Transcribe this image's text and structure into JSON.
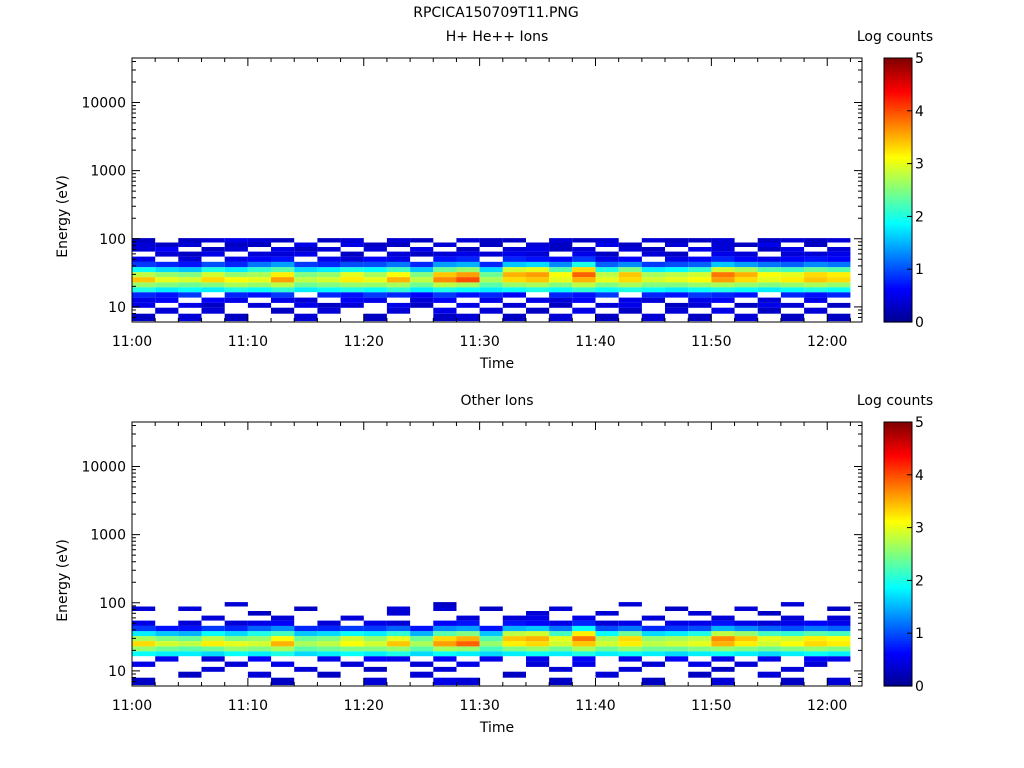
{
  "title": "RPCICA150709T11.PNG",
  "chart_data": [
    {
      "type": "heatmap",
      "title": "H+ He++ Ions",
      "xlabel": "Time",
      "ylabel": "Energy (eV)",
      "y_scale": "log",
      "ylim": [
        6,
        45000
      ],
      "xlim": [
        "11:00",
        "12:03"
      ],
      "x_ticks": [
        "11:00",
        "11:10",
        "11:20",
        "11:30",
        "11:40",
        "11:50",
        "12:00"
      ],
      "y_ticks": [
        "10",
        "100",
        "1000",
        "10000"
      ],
      "colorbar": {
        "label": "Log counts",
        "range": [
          0,
          5
        ],
        "ticks": [
          "0",
          "1",
          "2",
          "3",
          "4",
          "5"
        ]
      },
      "energy_bins": [
        7,
        9,
        10.5,
        12.5,
        15,
        18,
        21,
        25,
        30,
        35,
        42,
        50,
        60,
        70,
        82,
        95
      ],
      "times": [
        "11:01",
        "11:03",
        "11:05",
        "11:07",
        "11:09",
        "11:11",
        "11:13",
        "11:15",
        "11:17",
        "11:19",
        "11:21",
        "11:23",
        "11:25",
        "11:27",
        "11:29",
        "11:31",
        "11:33",
        "11:35",
        "11:37",
        "11:39",
        "11:41",
        "11:43",
        "11:45",
        "11:47",
        "11:49",
        "11:51",
        "11:53",
        "11:55",
        "11:57",
        "11:59",
        "12:01"
      ],
      "values": [
        [
          0.3,
          -1,
          0.5,
          0.5,
          0.8,
          2,
          2.6,
          3.4,
          2.8,
          1.9,
          0.9,
          0.5,
          -1,
          0.4,
          0.4,
          0.3
        ],
        [
          -1,
          0.4,
          -1,
          0.6,
          0.7,
          1.8,
          2.5,
          3,
          2.6,
          1.7,
          0.8,
          -1,
          0.4,
          0.6,
          0.3,
          -1
        ],
        [
          0.4,
          -1,
          0.5,
          -1,
          0.9,
          1.9,
          2.4,
          2.9,
          2.5,
          1.6,
          0.7,
          0.4,
          0.3,
          -1,
          0.4,
          0.3
        ],
        [
          -1,
          0.4,
          0.3,
          0.6,
          -1,
          1.8,
          2.5,
          3.3,
          2.9,
          2,
          1,
          -1,
          0.5,
          0.3,
          -1,
          0.4
        ],
        [
          0.3,
          -1,
          -1,
          0.5,
          0.8,
          2,
          2.7,
          3.1,
          2.6,
          1.8,
          0.8,
          0.5,
          -1,
          0.4,
          0.3,
          0.5
        ],
        [
          -1,
          -1,
          0.4,
          -1,
          0.7,
          1.9,
          2.6,
          3,
          2.7,
          2.1,
          1.2,
          0.6,
          0.4,
          -1,
          0.3,
          0.4
        ],
        [
          -1,
          0.3,
          -1,
          0.5,
          0.9,
          2.1,
          2.8,
          3.6,
          3.2,
          2.3,
          1.4,
          0.7,
          0.4,
          0.5,
          -1,
          0.3
        ],
        [
          0.4,
          -1,
          0.5,
          0.4,
          -1,
          1.8,
          2.4,
          2.8,
          2.5,
          1.7,
          0.9,
          -1,
          0.5,
          0.3,
          0.5,
          -1
        ],
        [
          -1,
          0.4,
          0.3,
          -1,
          0.8,
          1.9,
          2.5,
          2.9,
          2.6,
          1.8,
          0.8,
          0.5,
          -1,
          0.4,
          -1,
          0.3
        ],
        [
          -1,
          -1,
          0.4,
          0.6,
          0.7,
          2,
          2.6,
          3.2,
          3,
          2,
          1,
          0.4,
          0.3,
          -1,
          0.5,
          0.4
        ],
        [
          0.3,
          -1,
          -1,
          0.5,
          0.9,
          1.9,
          2.6,
          3,
          2.7,
          1.9,
          1,
          0.6,
          -1,
          0.4,
          0.3,
          -1
        ],
        [
          -1,
          0.4,
          0.5,
          -1,
          0.8,
          2.1,
          2.7,
          3.5,
          3.1,
          2.2,
          1.2,
          0.5,
          0.4,
          -1,
          0.3,
          0.4
        ],
        [
          -1,
          -1,
          0.3,
          0.4,
          0.6,
          1.8,
          2.4,
          2.8,
          2.5,
          1.6,
          0.8,
          -1,
          0.3,
          0.5,
          -1,
          0.3
        ],
        [
          0.3,
          0.5,
          -1,
          0.6,
          0.9,
          2,
          2.8,
          3.7,
          3.4,
          2.4,
          1.4,
          0.7,
          0.4,
          -1,
          0.4,
          -1
        ],
        [
          0.4,
          -1,
          0.5,
          -1,
          0.7,
          1.9,
          2.7,
          4,
          3.6,
          2.6,
          1.5,
          0.8,
          0.5,
          0.3,
          -1,
          0.4
        ],
        [
          -1,
          0.4,
          -1,
          0.5,
          0.8,
          1.8,
          2.3,
          2.7,
          2.4,
          1.7,
          0.8,
          -1,
          0.4,
          -1,
          0.3,
          0.3
        ],
        [
          0.3,
          -1,
          0.4,
          -1,
          0.6,
          1.9,
          2.6,
          3.3,
          3.5,
          2.9,
          1.6,
          0.8,
          0.5,
          0.4,
          -1,
          0.3
        ],
        [
          -1,
          0.3,
          -1,
          0.5,
          -1,
          2,
          2.7,
          3.4,
          3.6,
          3,
          1.7,
          0.7,
          0.4,
          0.5,
          0.4,
          -1
        ],
        [
          0.4,
          -1,
          0.3,
          0.4,
          0.8,
          1.9,
          2.5,
          3,
          3.1,
          2.3,
          1.3,
          0.6,
          -1,
          0.3,
          0.3,
          0.4
        ],
        [
          -1,
          0.5,
          -1,
          0.6,
          0.7,
          2.1,
          2.8,
          3.5,
          3.9,
          3.3,
          2,
          0.9,
          0.5,
          0.4,
          -1,
          0.3
        ],
        [
          0.3,
          -1,
          0.4,
          -1,
          0.9,
          1.9,
          2.5,
          3,
          2.8,
          2,
          1.1,
          0.5,
          0.3,
          -1,
          0.5,
          0.4
        ],
        [
          -1,
          0.3,
          0.5,
          0.5,
          -1,
          2,
          2.7,
          3.3,
          3.4,
          2.5,
          1.3,
          0.6,
          -1,
          0.4,
          0.3,
          -1
        ],
        [
          0.4,
          -1,
          -1,
          0.4,
          0.8,
          1.9,
          2.5,
          2.9,
          2.7,
          1.8,
          0.9,
          -1,
          0.4,
          0.3,
          -1,
          0.4
        ],
        [
          -1,
          0.4,
          0.3,
          -1,
          0.7,
          1.8,
          2.5,
          3,
          2.8,
          1.9,
          1,
          0.5,
          0.3,
          -1,
          0.4,
          0.3
        ],
        [
          0.3,
          -1,
          0.4,
          0.5,
          0.9,
          1.9,
          2.6,
          3.1,
          2.9,
          2.1,
          1.1,
          0.6,
          -1,
          0.5,
          -1,
          0.3
        ],
        [
          -1,
          0.5,
          -1,
          0.6,
          0.8,
          2,
          2.7,
          3.6,
          3.8,
          2.9,
          1.6,
          0.8,
          0.5,
          0.4,
          0.4,
          0.4
        ],
        [
          0.4,
          -1,
          0.3,
          -1,
          0.7,
          1.9,
          2.6,
          3.3,
          3.5,
          2.7,
          1.4,
          0.6,
          0.4,
          -1,
          0.3,
          -1
        ],
        [
          -1,
          0.3,
          0.5,
          0.4,
          -1,
          1.8,
          2.5,
          3,
          3.1,
          2.3,
          1.2,
          0.5,
          -1,
          0.3,
          0.5,
          0.3
        ],
        [
          0.3,
          -1,
          0.4,
          -1,
          0.8,
          1.9,
          2.6,
          3.2,
          3,
          2.2,
          1.1,
          0.6,
          0.4,
          0.5,
          -1,
          0.4
        ],
        [
          -1,
          0.4,
          -1,
          0.5,
          0.7,
          2,
          2.7,
          3.4,
          3.3,
          2.4,
          1.3,
          0.7,
          0.4,
          -1,
          0.3,
          0.3
        ],
        [
          0.3,
          -1,
          0.3,
          -1,
          0.8,
          1.9,
          2.6,
          3.3,
          3.2,
          2.3,
          1.2,
          0.6,
          0.5,
          0.4,
          -1,
          0.4
        ]
      ]
    },
    {
      "type": "heatmap",
      "title": "Other Ions",
      "xlabel": "Time",
      "ylabel": "Energy (eV)",
      "y_scale": "log",
      "ylim": [
        6,
        45000
      ],
      "xlim": [
        "11:00",
        "12:03"
      ],
      "x_ticks": [
        "11:00",
        "11:10",
        "11:20",
        "11:30",
        "11:40",
        "11:50",
        "12:00"
      ],
      "y_ticks": [
        "10",
        "100",
        "1000",
        "10000"
      ],
      "colorbar": {
        "label": "Log counts",
        "range": [
          0,
          5
        ],
        "ticks": [
          "0",
          "1",
          "2",
          "3",
          "4",
          "5"
        ]
      },
      "energy_bins": [
        7,
        9,
        10.5,
        12.5,
        15,
        18,
        21,
        25,
        30,
        35,
        42,
        50,
        60,
        70,
        82,
        95
      ],
      "times": [
        "11:01",
        "11:03",
        "11:05",
        "11:07",
        "11:09",
        "11:11",
        "11:13",
        "11:15",
        "11:17",
        "11:19",
        "11:21",
        "11:23",
        "11:25",
        "11:27",
        "11:29",
        "11:31",
        "11:33",
        "11:35",
        "11:37",
        "11:39",
        "11:41",
        "11:43",
        "11:45",
        "11:47",
        "11:49",
        "11:51",
        "11:53",
        "11:55",
        "11:57",
        "11:59",
        "12:01"
      ],
      "values": [
        [
          0.3,
          -1,
          -1,
          0.5,
          -1,
          1.9,
          2.6,
          3.3,
          2.7,
          1.8,
          0.9,
          0.5,
          -1,
          -1,
          0.4,
          -1
        ],
        [
          -1,
          -1,
          -1,
          -1,
          0.5,
          1.8,
          2.4,
          2.9,
          2.5,
          1.6,
          0.7,
          -1,
          -1,
          -1,
          -1,
          -1
        ],
        [
          -1,
          0.3,
          -1,
          -1,
          -1,
          1.8,
          2.3,
          2.8,
          2.4,
          1.5,
          0.7,
          0.4,
          -1,
          -1,
          0.4,
          -1
        ],
        [
          -1,
          -1,
          0.4,
          -1,
          0.4,
          1.7,
          2.4,
          3.2,
          2.8,
          1.9,
          0.9,
          -1,
          0.4,
          -1,
          -1,
          -1
        ],
        [
          -1,
          -1,
          -1,
          0.4,
          -1,
          1.9,
          2.6,
          3,
          2.5,
          1.7,
          0.8,
          0.4,
          -1,
          -1,
          -1,
          0.4
        ],
        [
          -1,
          0.4,
          -1,
          -1,
          0.6,
          1.8,
          2.5,
          2.9,
          2.6,
          2,
          1.1,
          0.5,
          -1,
          0.3,
          -1,
          -1
        ],
        [
          0.3,
          -1,
          -1,
          0.5,
          -1,
          2,
          2.7,
          3.5,
          3.1,
          2.2,
          1.3,
          0.6,
          0.4,
          -1,
          -1,
          -1
        ],
        [
          -1,
          -1,
          0.4,
          -1,
          -1,
          1.7,
          2.3,
          2.7,
          2.4,
          1.6,
          0.8,
          -1,
          -1,
          -1,
          0.3,
          -1
        ],
        [
          -1,
          0.3,
          -1,
          -1,
          0.5,
          1.8,
          2.4,
          2.8,
          2.5,
          1.7,
          0.8,
          0.4,
          -1,
          -1,
          -1,
          -1
        ],
        [
          -1,
          -1,
          -1,
          0.4,
          -1,
          1.9,
          2.5,
          3.1,
          2.9,
          1.9,
          0.9,
          -1,
          0.4,
          -1,
          -1,
          -1
        ],
        [
          0.4,
          -1,
          0.3,
          -1,
          0.6,
          1.8,
          2.5,
          2.9,
          2.6,
          1.8,
          0.9,
          0.5,
          -1,
          -1,
          -1,
          -1
        ],
        [
          -1,
          -1,
          -1,
          -1,
          0.5,
          2,
          2.6,
          3.4,
          3,
          2.1,
          1.1,
          0.4,
          -1,
          0.4,
          0.4,
          -1
        ],
        [
          -1,
          0.4,
          -1,
          0.4,
          -1,
          1.7,
          2.3,
          2.7,
          2.4,
          1.5,
          0.7,
          -1,
          -1,
          -1,
          -1,
          -1
        ],
        [
          0.5,
          -1,
          0.4,
          -1,
          0.6,
          1.9,
          2.7,
          3.6,
          3.3,
          2.3,
          1.3,
          0.6,
          -1,
          -1,
          0.4,
          0.3
        ],
        [
          0.4,
          -1,
          -1,
          0.5,
          -1,
          1.8,
          2.6,
          3.9,
          3.5,
          2.5,
          1.4,
          0.7,
          0.4,
          -1,
          -1,
          -1
        ],
        [
          -1,
          -1,
          -1,
          -1,
          0.5,
          1.7,
          2.2,
          2.6,
          2.3,
          1.6,
          0.7,
          -1,
          -1,
          -1,
          0.3,
          -1
        ],
        [
          -1,
          0.3,
          -1,
          -1,
          -1,
          1.8,
          2.5,
          3.2,
          3.4,
          2.8,
          1.5,
          0.7,
          0.4,
          -1,
          -1,
          -1
        ],
        [
          -1,
          -1,
          -1,
          0.4,
          0.5,
          1.9,
          2.6,
          3.3,
          3.5,
          2.9,
          1.6,
          0.6,
          0.5,
          0.4,
          -1,
          -1
        ],
        [
          0.3,
          -1,
          0.4,
          -1,
          -1,
          1.8,
          2.4,
          2.9,
          3,
          2.2,
          1.2,
          0.5,
          -1,
          -1,
          0.4,
          -1
        ],
        [
          -1,
          -1,
          -1,
          0.5,
          0.6,
          2,
          2.7,
          3.4,
          3.8,
          3.2,
          1.9,
          0.8,
          0.5,
          -1,
          -1,
          -1
        ],
        [
          -1,
          0.4,
          -1,
          -1,
          -1,
          1.8,
          2.4,
          2.9,
          2.7,
          1.9,
          1,
          0.4,
          -1,
          0.4,
          -1,
          -1
        ],
        [
          -1,
          -1,
          0.4,
          -1,
          0.5,
          1.9,
          2.6,
          3.2,
          3.3,
          2.4,
          1.2,
          0.5,
          -1,
          -1,
          -1,
          0.4
        ],
        [
          0.3,
          -1,
          -1,
          0.4,
          -1,
          1.8,
          2.4,
          2.8,
          2.6,
          1.7,
          0.8,
          -1,
          0.4,
          -1,
          -1,
          -1
        ],
        [
          -1,
          -1,
          -1,
          -1,
          0.6,
          1.7,
          2.4,
          2.9,
          2.7,
          1.8,
          0.9,
          0.5,
          -1,
          -1,
          0.3,
          -1
        ],
        [
          -1,
          0.3,
          -1,
          0.5,
          -1,
          1.8,
          2.5,
          3,
          2.8,
          2,
          1,
          0.5,
          -1,
          0.4,
          -1,
          -1
        ],
        [
          0.4,
          -1,
          0.3,
          -1,
          0.5,
          1.9,
          2.6,
          3.5,
          3.7,
          2.8,
          1.5,
          0.7,
          0.4,
          -1,
          -1,
          -1
        ],
        [
          -1,
          -1,
          -1,
          0.4,
          -1,
          1.8,
          2.5,
          3.2,
          3.4,
          2.6,
          1.3,
          0.5,
          -1,
          -1,
          0.4,
          -1
        ],
        [
          -1,
          0.4,
          -1,
          -1,
          0.5,
          1.7,
          2.4,
          2.9,
          3,
          2.2,
          1.1,
          0.4,
          -1,
          0.3,
          -1,
          -1
        ],
        [
          0.3,
          -1,
          0.4,
          -1,
          -1,
          1.8,
          2.5,
          3.1,
          2.9,
          2.1,
          1,
          0.5,
          0.4,
          -1,
          -1,
          0.4
        ],
        [
          -1,
          -1,
          -1,
          0.4,
          0.6,
          1.9,
          2.6,
          3.3,
          3.2,
          2.3,
          1.2,
          0.6,
          -1,
          -1,
          -1,
          -1
        ],
        [
          0.4,
          -1,
          -1,
          -1,
          0.5,
          1.8,
          2.5,
          3.2,
          3.1,
          2.2,
          1.1,
          0.5,
          0.4,
          -1,
          0.3,
          -1
        ]
      ]
    }
  ]
}
